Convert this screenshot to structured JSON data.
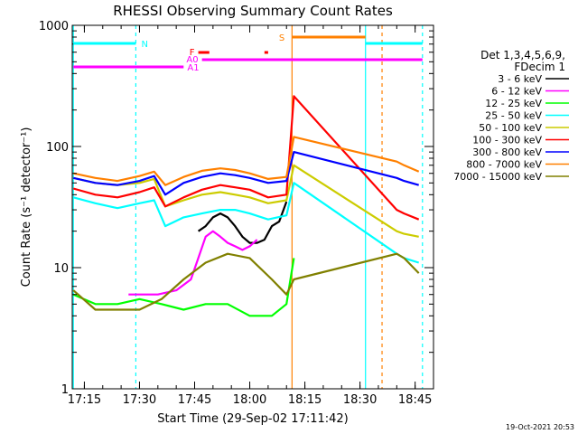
{
  "chart_data": {
    "type": "line",
    "title": "RHESSI Observing Summary Count Rates",
    "xlabel": "Start Time (29-Sep-02 17:11:42)",
    "ylabel": "Count Rate (s⁻¹ detector⁻¹)",
    "ylog": true,
    "ylim": [
      1,
      1000
    ],
    "xlim": [
      "17:11:42",
      "18:50:00"
    ],
    "x_ticks": [
      "17:15",
      "17:30",
      "17:45",
      "18:00",
      "18:15",
      "18:30",
      "18:45"
    ],
    "y_ticks": [
      "1",
      "10",
      "100",
      "1000"
    ],
    "legend": {
      "placement": "right",
      "header": [
        "Det 1,3,4,5,6,9,",
        "FDecim 1"
      ]
    },
    "series": [
      {
        "name": "3 - 6 keV",
        "color": "#000000",
        "x": [
          "17:46",
          "17:48",
          "17:50",
          "17:52",
          "17:54",
          "17:56",
          "17:58",
          "18:00",
          "18:02",
          "18:04",
          "18:06",
          "18:08",
          "18:10"
        ],
        "values": [
          20,
          22,
          26,
          28,
          26,
          22,
          18,
          16,
          16,
          17,
          22,
          24,
          35
        ]
      },
      {
        "name": "6 - 12 keV",
        "color": "#ff00ff",
        "x": [
          "17:27",
          "17:30",
          "17:35",
          "17:40",
          "17:44",
          "17:46",
          "17:48",
          "17:50",
          "17:52",
          "17:54",
          "17:56",
          "17:58",
          "18:00",
          "18:02"
        ],
        "values": [
          6,
          6,
          6,
          6.5,
          8,
          12,
          18,
          20,
          18,
          16,
          15,
          14,
          15,
          17
        ]
      },
      {
        "name": "12 - 25 keV",
        "color": "#00ff00",
        "x": [
          "17:12",
          "17:18",
          "17:24",
          "17:30",
          "17:36",
          "17:42",
          "17:48",
          "17:54",
          "18:00",
          "18:06",
          "18:10",
          "18:12"
        ],
        "values": [
          6,
          5,
          5,
          5.5,
          5,
          4.5,
          5,
          5,
          4,
          4,
          5,
          12
        ]
      },
      {
        "name": "25 - 50 keV",
        "color": "#00ffff",
        "x": [
          "17:12",
          "17:18",
          "17:24",
          "17:30",
          "17:34",
          "17:37",
          "17:42",
          "17:47",
          "17:52",
          "17:56",
          "18:00",
          "18:05",
          "18:10",
          "18:12",
          "18:40",
          "18:42",
          "18:46"
        ],
        "values": [
          38,
          34,
          31,
          34,
          36,
          22,
          26,
          28,
          30,
          30,
          28,
          25,
          27,
          50,
          13,
          12,
          11
        ]
      },
      {
        "name": "50 - 100 keV",
        "color": "#cccc00",
        "x": [
          "17:12",
          "17:18",
          "17:24",
          "17:30",
          "17:34",
          "17:37",
          "17:42",
          "17:47",
          "17:52",
          "17:56",
          "18:00",
          "18:05",
          "18:10",
          "18:12",
          "18:40",
          "18:42",
          "18:46"
        ],
        "values": [
          55,
          50,
          48,
          50,
          54,
          32,
          36,
          40,
          42,
          40,
          38,
          34,
          36,
          70,
          20,
          19,
          18
        ]
      },
      {
        "name": "100 - 300 keV",
        "color": "#ff0000",
        "x": [
          "17:12",
          "17:18",
          "17:24",
          "17:30",
          "17:34",
          "17:37",
          "17:42",
          "17:47",
          "17:52",
          "17:56",
          "18:00",
          "18:05",
          "18:10",
          "18:12",
          "18:40",
          "18:42",
          "18:46"
        ],
        "values": [
          45,
          40,
          38,
          42,
          46,
          32,
          38,
          44,
          48,
          46,
          44,
          38,
          40,
          260,
          30,
          28,
          25
        ]
      },
      {
        "name": "300 - 800 keV",
        "color": "#0000ff",
        "x": [
          "17:12",
          "17:18",
          "17:24",
          "17:30",
          "17:34",
          "17:37",
          "17:42",
          "17:47",
          "17:52",
          "17:56",
          "18:00",
          "18:05",
          "18:10",
          "18:12",
          "18:40",
          "18:42",
          "18:46"
        ],
        "values": [
          55,
          50,
          48,
          52,
          57,
          40,
          50,
          56,
          60,
          58,
          55,
          50,
          52,
          90,
          55,
          52,
          48
        ]
      },
      {
        "name": "800 - 7000 keV",
        "color": "#ff8000",
        "x": [
          "17:12",
          "17:18",
          "17:24",
          "17:30",
          "17:34",
          "17:37",
          "17:42",
          "17:47",
          "17:52",
          "17:56",
          "18:00",
          "18:05",
          "18:10",
          "18:12",
          "18:40",
          "18:42",
          "18:46"
        ],
        "values": [
          60,
          55,
          52,
          57,
          62,
          48,
          56,
          63,
          66,
          64,
          60,
          54,
          56,
          120,
          75,
          70,
          62
        ]
      },
      {
        "name": "7000 - 15000 keV",
        "color": "#808000",
        "x": [
          "17:12",
          "17:18",
          "17:24",
          "17:30",
          "17:36",
          "17:42",
          "17:48",
          "17:54",
          "18:00",
          "18:06",
          "18:10",
          "18:12",
          "18:40",
          "18:42",
          "18:46"
        ],
        "values": [
          6.5,
          4.5,
          4.5,
          4.5,
          5.5,
          8,
          11,
          13,
          12,
          8,
          6,
          8,
          13,
          12,
          9
        ]
      }
    ],
    "observing_flags": [
      {
        "label": "N",
        "color": "#00ffff"
      },
      {
        "label": "S",
        "color": "#ff8000"
      },
      {
        "label": "F",
        "color": "#ff0000"
      },
      {
        "label": "A0",
        "color": "#ff00ff"
      },
      {
        "label": "A1",
        "color": "#ff00ff"
      }
    ]
  },
  "footer": {
    "timestamp": "19-Oct-2021 20:53"
  }
}
